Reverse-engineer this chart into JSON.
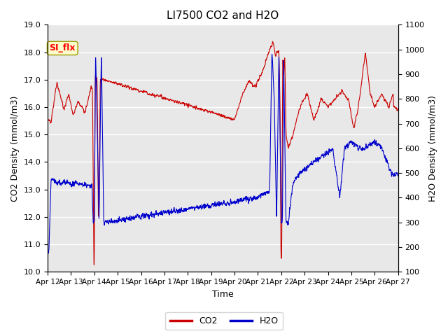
{
  "title": "LI7500 CO2 and H2O",
  "xlabel": "Time",
  "ylabel_left": "CO2 Density (mmol/m3)",
  "ylabel_right": "H2O Density (mmol/m3)",
  "ylim_left": [
    10.0,
    19.0
  ],
  "ylim_right": [
    100,
    1100
  ],
  "x_tick_labels": [
    "Apr 12",
    "Apr 13",
    "Apr 14",
    "Apr 15",
    "Apr 16",
    "Apr 17",
    "Apr 18",
    "Apr 19",
    "Apr 20",
    "Apr 21",
    "Apr 22",
    "Apr 23",
    "Apr 24",
    "Apr 25",
    "Apr 26",
    "Apr 27"
  ],
  "annotation_text": "SI_flx",
  "background_color": "#ffffff",
  "plot_bg_color": "#e8e8e8",
  "grid_color": "#ffffff",
  "co2_color": "#cc0000",
  "h2o_color": "#0000cc",
  "legend_co2": "CO2",
  "legend_h2o": "H2O",
  "linewidth": 0.8
}
